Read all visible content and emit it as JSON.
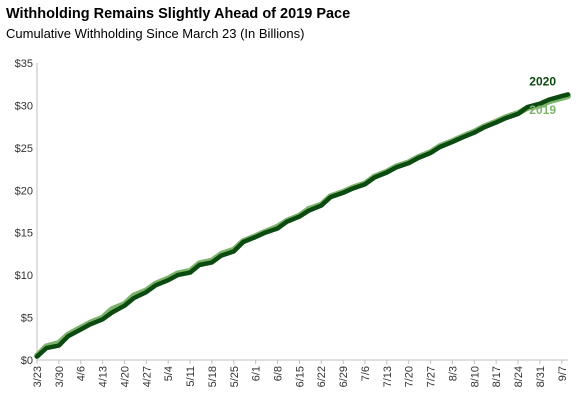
{
  "chart_data": {
    "type": "line",
    "title": "Withholding Remains Slightly Ahead of 2019 Pace",
    "subtitle": "Cumulative Withholding Since March 23 (In Billions)",
    "xlabel": "",
    "ylabel": "",
    "ylim": [
      0,
      35
    ],
    "y_ticks": [
      "$0",
      "$5",
      "$10",
      "$15",
      "$20",
      "$25",
      "$30",
      "$35"
    ],
    "y_tick_values": [
      0,
      5,
      10,
      15,
      20,
      25,
      30,
      35
    ],
    "x_ticks": [
      "3/23",
      "3/30",
      "4/6",
      "4/13",
      "4/20",
      "4/27",
      "5/4",
      "5/11",
      "5/18",
      "5/25",
      "6/1",
      "6/8",
      "6/15",
      "6/22",
      "6/29",
      "7/6",
      "7/13",
      "7/20",
      "7/27",
      "8/3",
      "8/10",
      "8/17",
      "8/24",
      "8/31",
      "9/7"
    ],
    "x_tick_days": [
      0,
      7,
      14,
      21,
      28,
      35,
      42,
      49,
      56,
      63,
      70,
      77,
      84,
      91,
      98,
      105,
      112,
      119,
      126,
      133,
      140,
      147,
      154,
      161,
      168
    ],
    "x_range_days": [
      0,
      170
    ],
    "grid": false,
    "series": [
      {
        "name": "2019",
        "color": "#7cb46b",
        "x": [
          0,
          3,
          7,
          10,
          14,
          17,
          21,
          24,
          28,
          31,
          35,
          38,
          42,
          45,
          49,
          52,
          56,
          59,
          63,
          66,
          70,
          73,
          77,
          80,
          84,
          87,
          91,
          94,
          98,
          101,
          105,
          108,
          112,
          115,
          119,
          122,
          126,
          129,
          133,
          136,
          140,
          143,
          147,
          150,
          154,
          157,
          161,
          164,
          168,
          170
        ],
        "y": [
          0.5,
          1.6,
          2.0,
          3.0,
          3.8,
          4.4,
          5.0,
          6.0,
          6.6,
          7.6,
          8.2,
          9.0,
          9.6,
          10.2,
          10.5,
          11.4,
          11.7,
          12.5,
          13.0,
          14.0,
          14.6,
          15.1,
          15.7,
          16.4,
          17.0,
          17.8,
          18.3,
          19.3,
          19.8,
          20.3,
          20.8,
          21.6,
          22.2,
          22.8,
          23.3,
          23.9,
          24.5,
          25.2,
          25.8,
          26.3,
          26.9,
          27.5,
          28.1,
          28.6,
          29.1,
          29.7,
          30.0,
          30.5,
          30.9,
          31.1
        ]
      },
      {
        "name": "2020",
        "color": "#0b4a10",
        "x": [
          0,
          3,
          7,
          10,
          14,
          17,
          21,
          24,
          28,
          31,
          35,
          38,
          42,
          45,
          49,
          52,
          56,
          59,
          63,
          66,
          70,
          73,
          77,
          80,
          84,
          87,
          91,
          94,
          98,
          101,
          105,
          108,
          112,
          115,
          119,
          122,
          126,
          129,
          133,
          136,
          140,
          143,
          147,
          150,
          154,
          157,
          161,
          164,
          168,
          170
        ],
        "y": [
          0.4,
          1.4,
          1.7,
          2.8,
          3.6,
          4.2,
          4.8,
          5.6,
          6.4,
          7.3,
          8.0,
          8.8,
          9.4,
          10.0,
          10.3,
          11.2,
          11.5,
          12.3,
          12.8,
          13.9,
          14.5,
          15.0,
          15.5,
          16.3,
          16.9,
          17.6,
          18.2,
          19.2,
          19.7,
          20.2,
          20.7,
          21.5,
          22.1,
          22.7,
          23.2,
          23.8,
          24.4,
          25.1,
          25.7,
          26.2,
          26.8,
          27.4,
          28.0,
          28.5,
          29.0,
          29.8,
          30.2,
          30.7,
          31.1,
          31.3
        ]
      }
    ]
  }
}
